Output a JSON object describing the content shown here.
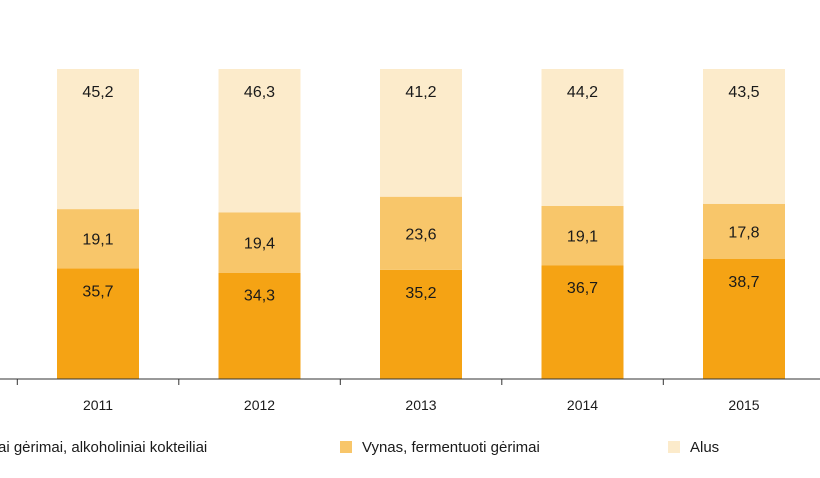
{
  "chart_data": {
    "type": "bar",
    "stacked": true,
    "categories": [
      "2011",
      "2012",
      "2013",
      "2014",
      "2015"
    ],
    "series": [
      {
        "name": "Stiprieji alkoholiniai gėrimai, alkoholiniai kokteiliai",
        "visible_name": "ai gėrimai, alkoholiniai kokteiliai",
        "color": "#F5A314",
        "values": [
          35.7,
          34.3,
          35.2,
          36.7,
          38.7
        ],
        "labels": [
          "35,7",
          "34,3",
          "35,2",
          "36,7",
          "38,7"
        ]
      },
      {
        "name": "Vynas, fermentuoti gėrimai",
        "color": "#F8C66A",
        "values": [
          19.1,
          19.4,
          23.6,
          19.1,
          17.8
        ],
        "labels": [
          "19,1",
          "19,4",
          "23,6",
          "19,1",
          "17,8"
        ]
      },
      {
        "name": "Alus",
        "color": "#FCEBCB",
        "values": [
          45.2,
          46.3,
          41.2,
          44.2,
          43.5
        ],
        "labels": [
          "45,2",
          "46,3",
          "41,2",
          "44,2",
          "43,5"
        ]
      }
    ],
    "ylim": [
      0,
      100
    ],
    "grid": false,
    "legend_position": "bottom"
  }
}
